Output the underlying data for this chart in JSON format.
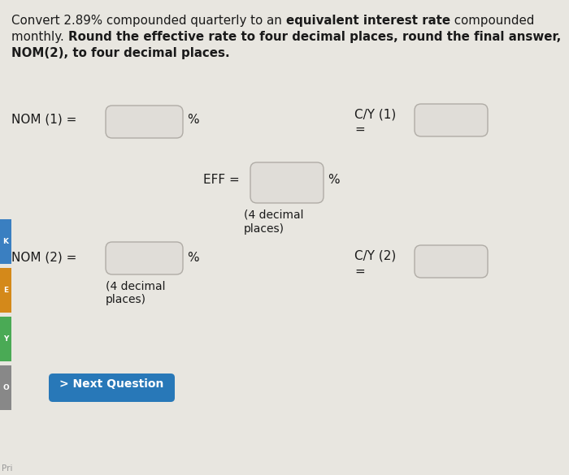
{
  "bg_color": "#e8e6e0",
  "text_color": "#1a1a1a",
  "box_face_color": "#e0ddd8",
  "box_edge_color": "#b0aca6",
  "button_color": "#2878b8",
  "button_text_color": "#ffffff",
  "title_normal_1": "Convert 2.89% compounded quarterly to an ",
  "title_bold_1": "equivalent interest rate",
  "title_normal_1b": " compounded",
  "title_normal_2": "monthly. ",
  "title_bold_2": "Round the effective rate to four decimal places, round the final answer,",
  "title_bold_3": "NOM(2), to four decimal places.",
  "nom1_label": "NOM (1) =",
  "cy1_label": "C/Y (1)",
  "cy1_eq": "=",
  "eff_label": "EFF =",
  "eff_decimal": "(4 decimal\nplaces)",
  "nom2_label": "NOM (2) =",
  "nom2_decimal": "(4 decimal\nplaces)",
  "cy2_label": "C/Y (2)",
  "cy2_eq": "=",
  "button_label": "> Next Question",
  "pri_label": "Pri",
  "left_bar_colors": [
    "#3a7fc1",
    "#d4891a",
    "#4aaa55",
    "#888888"
  ],
  "left_bar_labels": [
    "K",
    "E",
    "Y",
    "O"
  ]
}
